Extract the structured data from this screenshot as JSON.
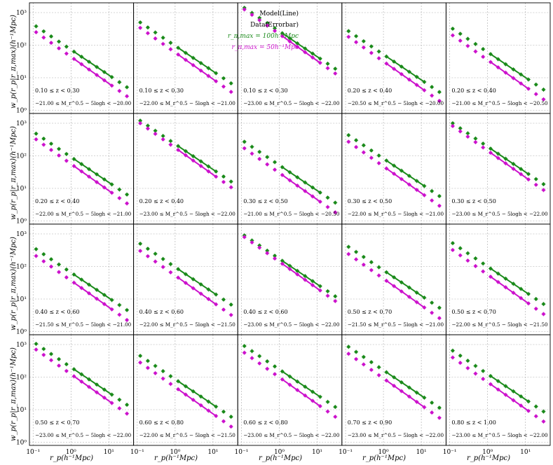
{
  "figure": {
    "legend": {
      "model": "Model(Line)",
      "data": "Data(Errorbar)",
      "series100": "r_π,max = 100h⁻¹Mpc",
      "series50": "r_π,max = 50h⁻¹Mpc"
    },
    "ylabel": "w_p(r_p|r_π,max)(h⁻¹Mpc)",
    "xlabel": "r_p(h⁻¹Mpc)",
    "xticks": [
      "10⁻¹",
      "10⁰",
      "10¹"
    ],
    "yticks": [
      "10⁰",
      "10¹",
      "10²",
      "10³"
    ],
    "colors": {
      "series100": "#1a8a1a",
      "series50": "#cc11cc",
      "grid": "#aaaaaa"
    }
  },
  "chart_data": {
    "type": "line",
    "layout": "4x5 grid of log-log panels",
    "xscale": "log",
    "yscale": "log",
    "xlim": [
      0.08,
      45
    ],
    "ylim": [
      0.8,
      2000
    ],
    "grid": true,
    "legend_position": "top-right of first row, third panel",
    "rp": [
      0.12,
      0.19,
      0.3,
      0.48,
      0.76,
      1.2,
      1.9,
      3.0,
      4.8,
      7.6,
      12,
      19,
      30,
      45
    ],
    "panels": [
      {
        "z": "0.10 ≤ z < 0.30",
        "mag": "−21.00 ≤ M_r^0.5 − 5logh < −20.00",
        "g1": 380,
        "m1": 250
      },
      {
        "z": "0.10 ≤ z < 0.30",
        "mag": "−22.00 ≤ M_r^0.5 − 5logh < −21.00",
        "g1": 500,
        "m1": 340
      },
      {
        "z": "0.10 ≤ z < 0.30",
        "mag": "−23.00 ≤ M_r^0.5 − 5logh < −22.00",
        "g1": 1400,
        "m1": 1250
      },
      {
        "z": "0.20 ≤ z < 0.40",
        "mag": "−20.50 ≤ M_r^0.5 − 5logh < −20.00",
        "g1": 270,
        "m1": 180
      },
      {
        "z": "0.20 ≤ z < 0.40",
        "mag": "−21.00 ≤ M_r^0.5 − 5logh < −20.50",
        "g1": 320,
        "m1": 200
      },
      {
        "z": "0.20 ≤ z < 0.40",
        "mag": "−22.00 ≤ M_r^0.5 − 5logh < −21.00",
        "g1": 480,
        "m1": 320
      },
      {
        "z": "0.20 ≤ z < 0.40",
        "mag": "−23.00 ≤ M_r^0.5 − 5logh < −22.00",
        "g1": 1200,
        "m1": 1000
      },
      {
        "z": "0.30 ≤ z < 0.50",
        "mag": "−21.00 ≤ M_r^0.5 − 5logh < −20.50",
        "g1": 270,
        "m1": 170
      },
      {
        "z": "0.30 ≤ z < 0.50",
        "mag": "−22.00 ≤ M_r^0.5 − 5logh < −21.00",
        "g1": 430,
        "m1": 270
      },
      {
        "z": "0.30 ≤ z < 0.50",
        "mag": "−23.00 ≤ M_r^0.5 − 5logh < −22.00",
        "g1": 1000,
        "m1": 820
      },
      {
        "z": "0.40 ≤ z < 0.60",
        "mag": "−21.50 ≤ M_r^0.5 − 5logh < −21.00",
        "g1": 340,
        "m1": 210
      },
      {
        "z": "0.40 ≤ z < 0.60",
        "mag": "−22.00 ≤ M_r^0.5 − 5logh < −21.50",
        "g1": 500,
        "m1": 300
      },
      {
        "z": "0.40 ≤ z < 0.60",
        "mag": "−23.00 ≤ M_r^0.5 − 5logh < −22.00",
        "g1": 900,
        "m1": 800
      },
      {
        "z": "0.50 ≤ z < 0.70",
        "mag": "−21.50 ≤ M_r^0.5 − 5logh < −21.00",
        "g1": 400,
        "m1": 240
      },
      {
        "z": "0.50 ≤ z < 0.70",
        "mag": "−22.00 ≤ M_r^0.5 − 5logh < −21.50",
        "g1": 520,
        "m1": 320
      },
      {
        "z": "0.50 ≤ z < 0.70",
        "mag": "−23.00 ≤ M_r^0.5 − 5logh < −22.00",
        "g1": 1050,
        "m1": 700
      },
      {
        "z": "0.60 ≤ z < 0.80",
        "mag": "−22.00 ≤ M_r^0.5 − 5logh < −21.50",
        "g1": 450,
        "m1": 280
      },
      {
        "z": "0.60 ≤ z < 0.80",
        "mag": "−23.00 ≤ M_r^0.5 − 5logh < −22.00",
        "g1": 900,
        "m1": 560
      },
      {
        "z": "0.70 ≤ z < 0.90",
        "mag": "−23.00 ≤ M_r^0.5 − 5logh < −22.00",
        "g1": 850,
        "m1": 520
      },
      {
        "z": "0.80 ≤ z < 1.00",
        "mag": "−23.00 ≤ M_r^0.5 − 5logh < −22.00",
        "g1": 650,
        "m1": 400
      }
    ]
  }
}
